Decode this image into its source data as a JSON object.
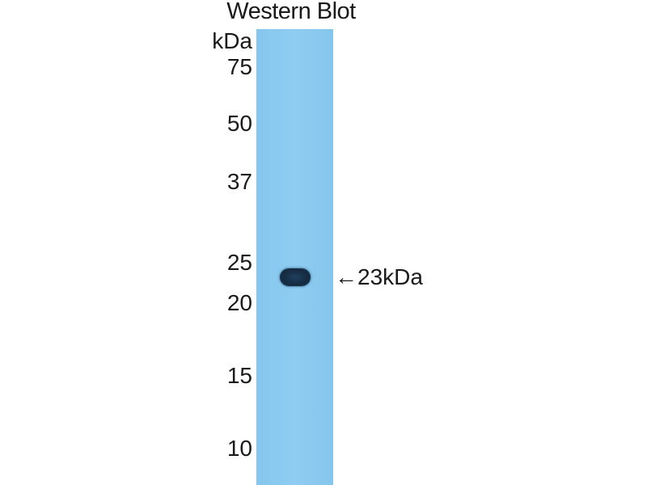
{
  "title": "Western Blot",
  "unit_label": "kDa",
  "markers": [
    "75",
    "50",
    "37",
    "25",
    "20",
    "15",
    "10"
  ],
  "band_annotation": {
    "arrow": "←",
    "label": "23kDa"
  },
  "colors": {
    "lane": "#8ccbf0",
    "band": "#172d44",
    "text": "#1a1a1a"
  }
}
